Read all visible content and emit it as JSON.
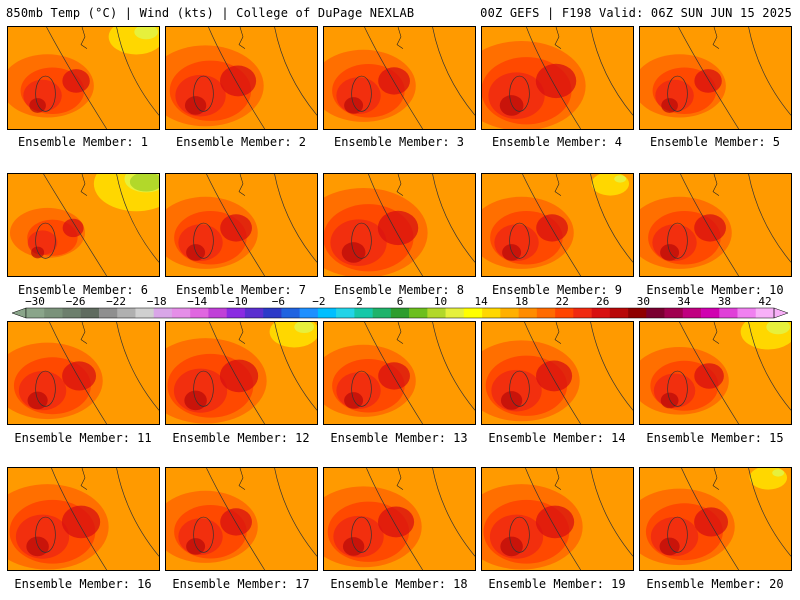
{
  "header": {
    "left_title": "850mb Temp (°C) | Wind (kts) | College of DuPage NEXLAB",
    "right_title": "00Z GEFS | F198 Valid: 06Z SUN JUN 15 2025"
  },
  "panels": [
    {
      "label": "Ensemble Member: 1",
      "heat": 0.45,
      "cool": 0.3
    },
    {
      "label": "Ensemble Member: 2",
      "heat": 0.65,
      "cool": 0.05
    },
    {
      "label": "Ensemble Member: 3",
      "heat": 0.55,
      "cool": 0.1
    },
    {
      "label": "Ensemble Member: 4",
      "heat": 0.75,
      "cool": 0.05
    },
    {
      "label": "Ensemble Member: 5",
      "heat": 0.45,
      "cool": 0.05
    },
    {
      "label": "Ensemble Member: 6",
      "heat": 0.3,
      "cool": 0.55
    },
    {
      "label": "Ensemble Member: 7",
      "heat": 0.55,
      "cool": 0.05
    },
    {
      "label": "Ensemble Member: 8",
      "heat": 0.75,
      "cool": 0.05
    },
    {
      "label": "Ensemble Member: 9",
      "heat": 0.55,
      "cool": 0.15
    },
    {
      "label": "Ensemble Member: 10",
      "heat": 0.55,
      "cool": 0.05
    },
    {
      "label": "Ensemble Member: 11",
      "heat": 0.6,
      "cool": 0.05
    },
    {
      "label": "Ensemble Member: 12",
      "heat": 0.7,
      "cool": 0.25
    },
    {
      "label": "Ensemble Member: 13",
      "heat": 0.55,
      "cool": 0.05
    },
    {
      "label": "Ensemble Member: 14",
      "heat": 0.65,
      "cool": 0.1
    },
    {
      "label": "Ensemble Member: 15",
      "heat": 0.5,
      "cool": 0.3
    },
    {
      "label": "Ensemble Member: 16",
      "heat": 0.7,
      "cool": 0.05
    },
    {
      "label": "Ensemble Member: 17",
      "heat": 0.55,
      "cool": 0.05
    },
    {
      "label": "Ensemble Member: 18",
      "heat": 0.65,
      "cool": 0.05
    },
    {
      "label": "Ensemble Member: 19",
      "heat": 0.7,
      "cool": 0.05
    },
    {
      "label": "Ensemble Member: 20",
      "heat": 0.6,
      "cool": 0.15
    }
  ],
  "colorbar": {
    "labels": [
      "−30",
      "−26",
      "−22",
      "−18",
      "−14",
      "−10",
      "−6",
      "−2",
      "2",
      "6",
      "10",
      "14",
      "18",
      "22",
      "26",
      "30",
      "34",
      "38",
      "42"
    ],
    "colors": [
      "#8aa58a",
      "#7a927a",
      "#6d7f6d",
      "#5f6b5f",
      "#8f8f8f",
      "#b0b0b0",
      "#d0d0d0",
      "#d9a6e8",
      "#e58ee8",
      "#e066e0",
      "#c040d8",
      "#8a2be2",
      "#5a2fd0",
      "#2c3ac8",
      "#1f63e0",
      "#1e90ff",
      "#00bfff",
      "#22d4e8",
      "#16c8a8",
      "#1fb36a",
      "#2e9d2e",
      "#6cbf1e",
      "#b2d82a",
      "#e6f03c",
      "#ffff00",
      "#ffd700",
      "#ffb000",
      "#ff8c00",
      "#ff6a00",
      "#ff4500",
      "#f02a10",
      "#d81010",
      "#b80808",
      "#8f0000",
      "#7a0030",
      "#a00050",
      "#c00080",
      "#d000b0",
      "#e040d8",
      "#f080f0",
      "#f8b0f8"
    ]
  }
}
